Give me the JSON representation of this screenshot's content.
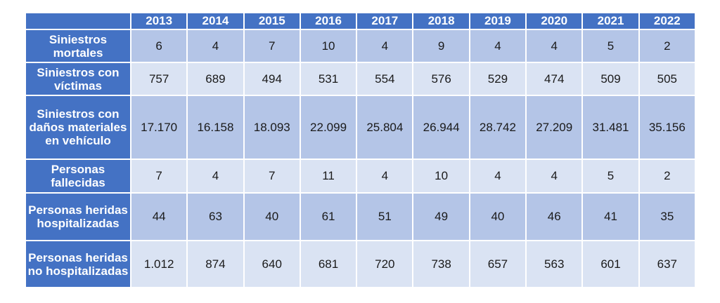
{
  "table": {
    "years": [
      "2013",
      "2014",
      "2015",
      "2016",
      "2017",
      "2018",
      "2019",
      "2020",
      "2021",
      "2022"
    ],
    "rows": [
      {
        "label": "Siniestros mortales",
        "values": [
          "6",
          "4",
          "7",
          "10",
          "4",
          "9",
          "4",
          "4",
          "5",
          "2"
        ]
      },
      {
        "label": "Siniestros con víctimas",
        "values": [
          "757",
          "689",
          "494",
          "531",
          "554",
          "576",
          "529",
          "474",
          "509",
          "505"
        ]
      },
      {
        "label": "Siniestros con daños materiales en vehículo",
        "values": [
          "17.170",
          "16.158",
          "18.093",
          "22.099",
          "25.804",
          "26.944",
          "28.742",
          "27.209",
          "31.481",
          "35.156"
        ]
      },
      {
        "label": "Personas fallecidas",
        "values": [
          "7",
          "4",
          "7",
          "11",
          "4",
          "10",
          "4",
          "4",
          "5",
          "2"
        ]
      },
      {
        "label": "Personas heridas hospitalizadas",
        "values": [
          "44",
          "63",
          "40",
          "61",
          "51",
          "49",
          "40",
          "46",
          "41",
          "35"
        ]
      },
      {
        "label": "Personas heridas no hospitalizadas",
        "values": [
          "1.012",
          "874",
          "640",
          "681",
          "720",
          "738",
          "657",
          "563",
          "601",
          "637"
        ]
      }
    ]
  },
  "colors": {
    "header_bg": "#4472c4",
    "header_text": "#ffffff",
    "row_dark": "#b4c5e7",
    "row_light": "#dae3f3",
    "cell_text": "#1a1a1a"
  }
}
